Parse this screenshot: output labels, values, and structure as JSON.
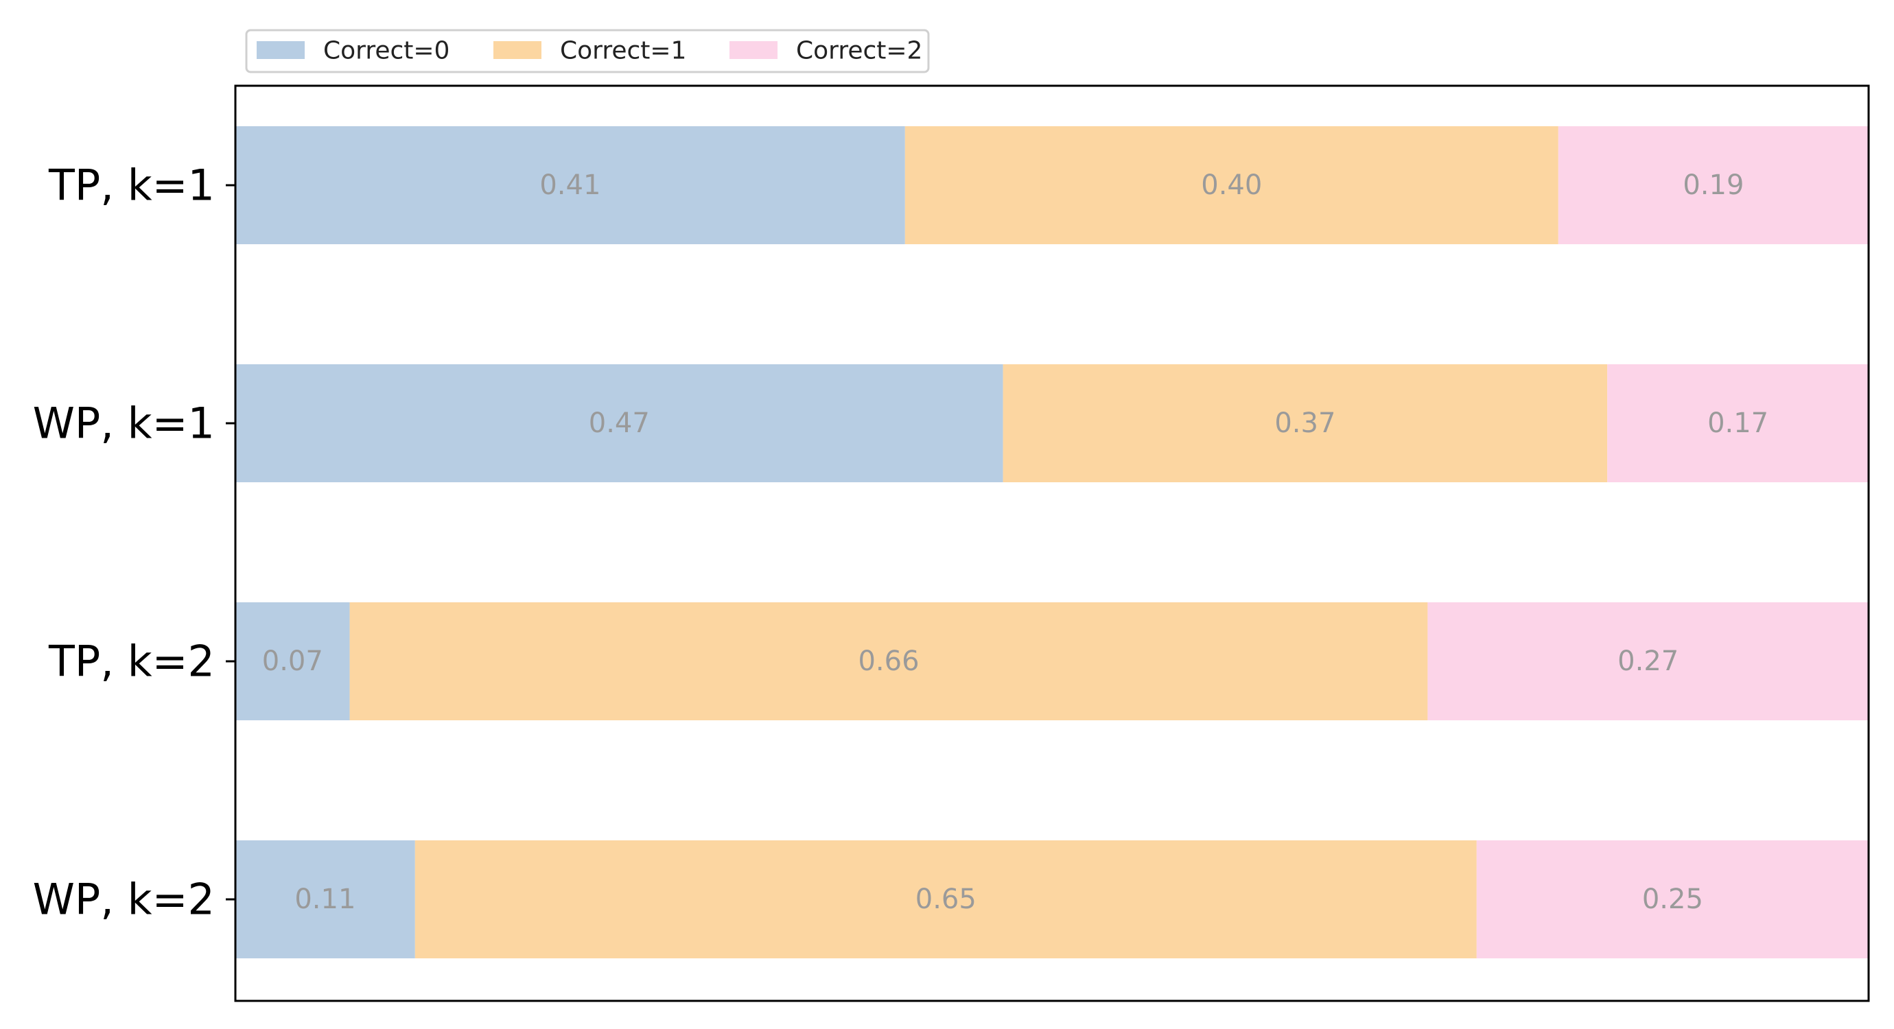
{
  "chart_data": {
    "type": "bar",
    "orientation": "horizontal",
    "stacked": true,
    "normalized": true,
    "categories": [
      "TP, k=1",
      "WP, k=1",
      "TP, k=2",
      "WP, k=2"
    ],
    "series": [
      {
        "name": "Correct=0",
        "color": "#b7cde3",
        "values": [
          0.41,
          0.47,
          0.07,
          0.11
        ]
      },
      {
        "name": "Correct=1",
        "color": "#fcd6a1",
        "values": [
          0.4,
          0.37,
          0.66,
          0.65
        ]
      },
      {
        "name": "Correct=2",
        "color": "#fcd4e8",
        "values": [
          0.19,
          0.17,
          0.27,
          0.25
        ]
      }
    ],
    "xlim": [
      0,
      1
    ],
    "title": "",
    "xlabel": "",
    "ylabel": "",
    "grid": false,
    "legend": "top-left, above plot",
    "x_ticks_visible": false
  }
}
